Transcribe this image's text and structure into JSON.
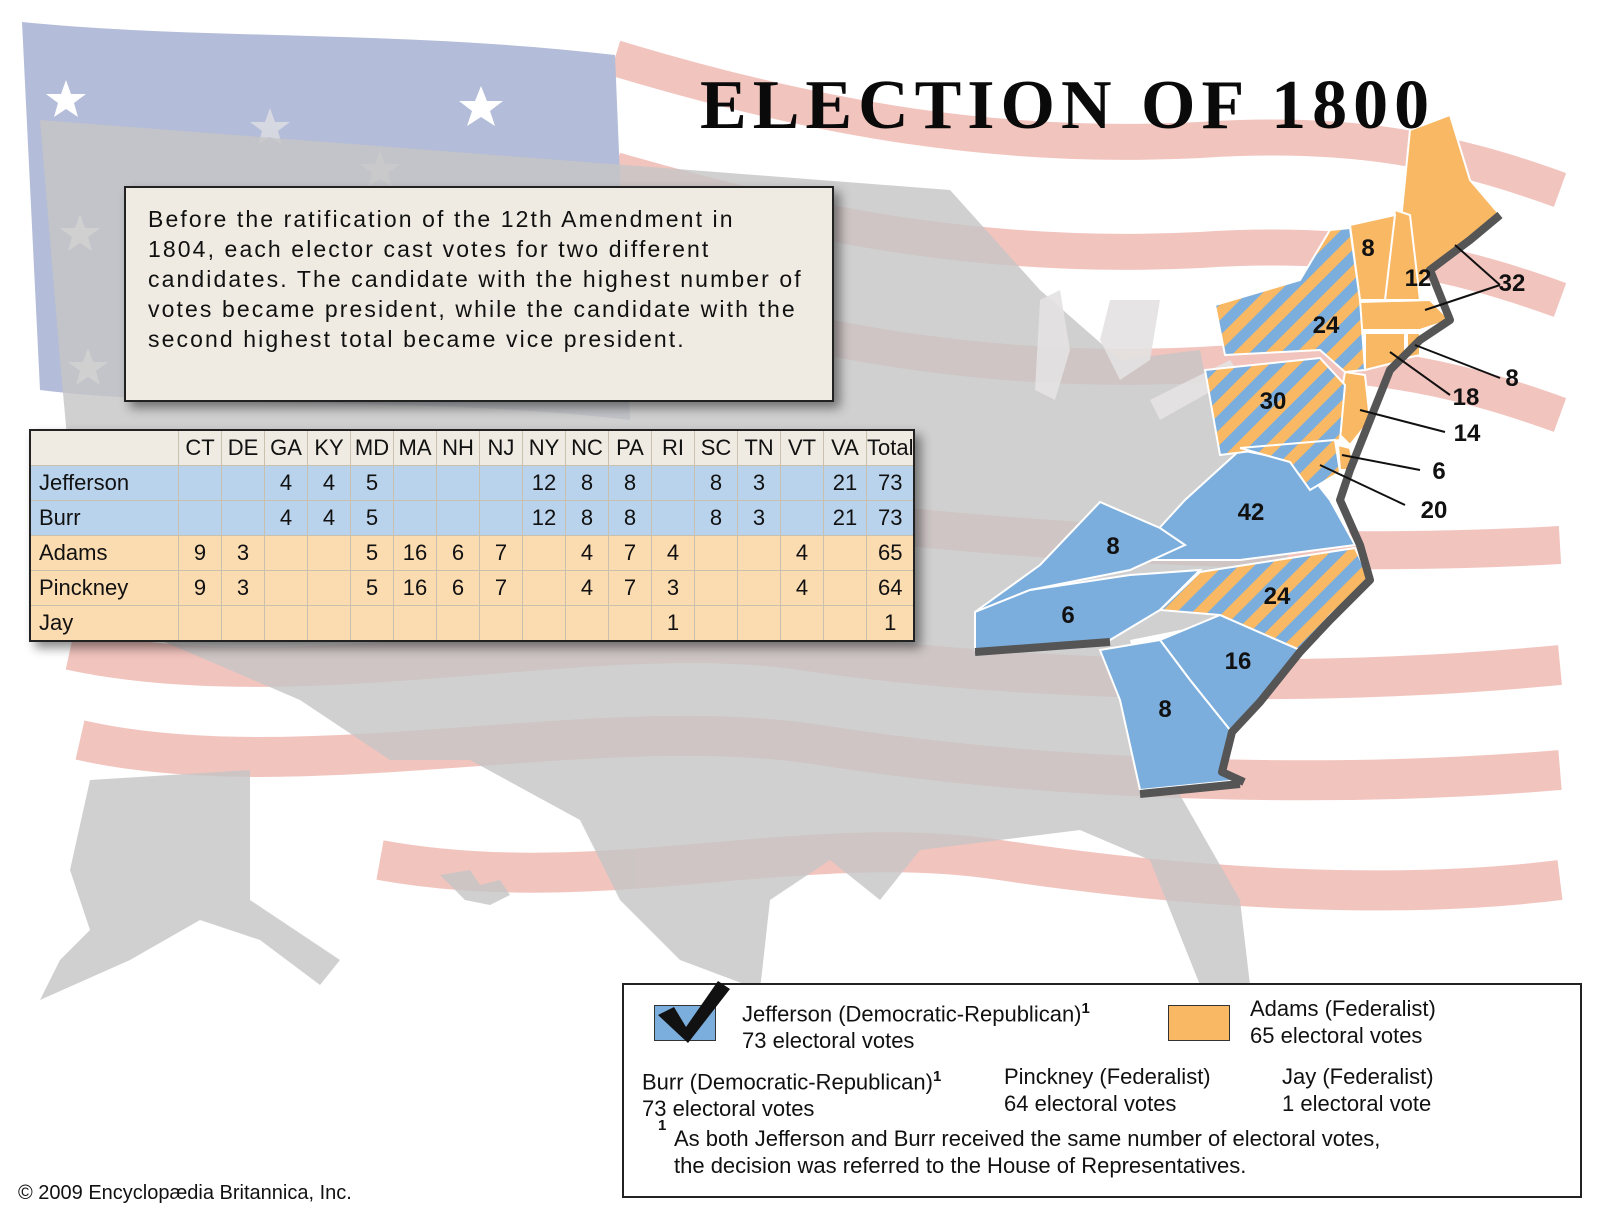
{
  "title": "ELECTION OF 1800",
  "note": "Before the ratification of the 12th Amendment in 1804, each elector cast votes for two different candidates.  The candidate with the highest number of votes became president, while the candidate with the second highest total became vice president.",
  "table": {
    "columns": [
      "",
      "CT",
      "DE",
      "GA",
      "KY",
      "MD",
      "MA",
      "NH",
      "NJ",
      "NY",
      "NC",
      "PA",
      "RI",
      "SC",
      "TN",
      "VT",
      "VA",
      "Total"
    ],
    "rows": [
      {
        "party": "dr",
        "cells": [
          "Jefferson",
          "",
          "",
          "4",
          "4",
          "5",
          "",
          "",
          "",
          "12",
          "8",
          "8",
          "",
          "8",
          "3",
          "",
          "21",
          "73"
        ]
      },
      {
        "party": "dr",
        "cells": [
          "Burr",
          "",
          "",
          "4",
          "4",
          "5",
          "",
          "",
          "",
          "12",
          "8",
          "8",
          "",
          "8",
          "3",
          "",
          "21",
          "73"
        ]
      },
      {
        "party": "fd",
        "cells": [
          "Adams",
          "9",
          "3",
          "",
          "",
          "5",
          "16",
          "6",
          "7",
          "",
          "4",
          "7",
          "4",
          "",
          "",
          "4",
          "",
          "65"
        ]
      },
      {
        "party": "fd",
        "cells": [
          "Pinckney",
          "9",
          "3",
          "",
          "",
          "5",
          "16",
          "6",
          "7",
          "",
          "4",
          "7",
          "3",
          "",
          "",
          "4",
          "",
          "64"
        ]
      },
      {
        "party": "fd",
        "cells": [
          "Jay",
          "",
          "",
          "",
          "",
          "",
          "",
          "",
          "",
          "",
          "",
          "",
          "1",
          "",
          "",
          "",
          "",
          "1"
        ]
      }
    ]
  },
  "map_labels": {
    "vt": "8",
    "nh": "12",
    "ma": "32",
    "ny": "24",
    "ri": "8",
    "ct": "18",
    "pa": "30",
    "nj": "14",
    "de": "6",
    "md": "20",
    "va": "42",
    "ky": "8",
    "nc": "24",
    "tn": "6",
    "sc": "16",
    "ga": "8"
  },
  "legend": {
    "jefferson_name": "Jefferson (Democratic-Republican)",
    "jefferson_votes": "73 electoral votes",
    "adams_name": "Adams (Federalist)",
    "adams_votes": "65 electoral votes",
    "burr_name": "Burr (Democratic-Republican)",
    "burr_votes": "73 electoral votes",
    "pinckney_name": "Pinckney (Federalist)",
    "pinckney_votes": "64 electoral votes",
    "jay_name": "Jay (Federalist)",
    "jay_votes": "1 electoral vote",
    "footnote_mark": "1",
    "footnote_1": "As both Jefferson and Burr received the same number of electoral votes,",
    "footnote_2": "the decision was referred to the House of Representatives."
  },
  "copyright": "© 2009 Encyclopædia Britannica, Inc.",
  "colors": {
    "democratic_republican": "#7baedd",
    "federalist": "#f8b864",
    "flag_blue": "#b3bcd8",
    "flag_red": "#f2c4be",
    "land_gray": "#c6c6c6"
  },
  "icons": [
    "check-icon",
    "star-icon"
  ]
}
